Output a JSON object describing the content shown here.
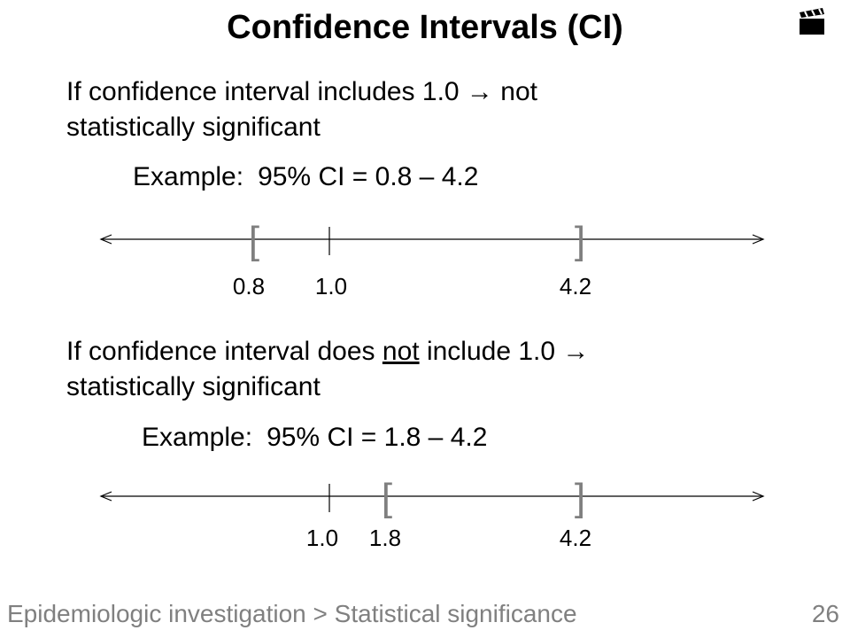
{
  "slide": {
    "title": "Confidence Intervals (CI)",
    "icon": "clapperboard-icon"
  },
  "section1": {
    "text_line1": "If confidence interval includes 1.0 → not",
    "text_line2": "statistically significant",
    "example_label": "Example:",
    "example_value": "95% CI = 0.8 – 4.2",
    "number_line": {
      "left_bracket": "[",
      "right_bracket": "]",
      "labels": [
        "0.8",
        "1.0",
        "4.2"
      ]
    }
  },
  "section2": {
    "text_pre": "If confidence interval does ",
    "text_underlined": "not",
    "text_post": " include 1.0 →",
    "text_line2": "statistically significant",
    "example_label": "Example:",
    "example_value": "95% CI = 1.8 – 4.2",
    "number_line": {
      "left_bracket": "[",
      "right_bracket": "]",
      "labels": [
        "1.0",
        "1.8",
        "4.2"
      ]
    }
  },
  "footer": {
    "breadcrumb": "Epidemiologic investigation > Statistical significance",
    "page_number": "26"
  },
  "colors": {
    "text": "#000000",
    "bracket": "#7f7f7f",
    "footer": "#808080"
  }
}
